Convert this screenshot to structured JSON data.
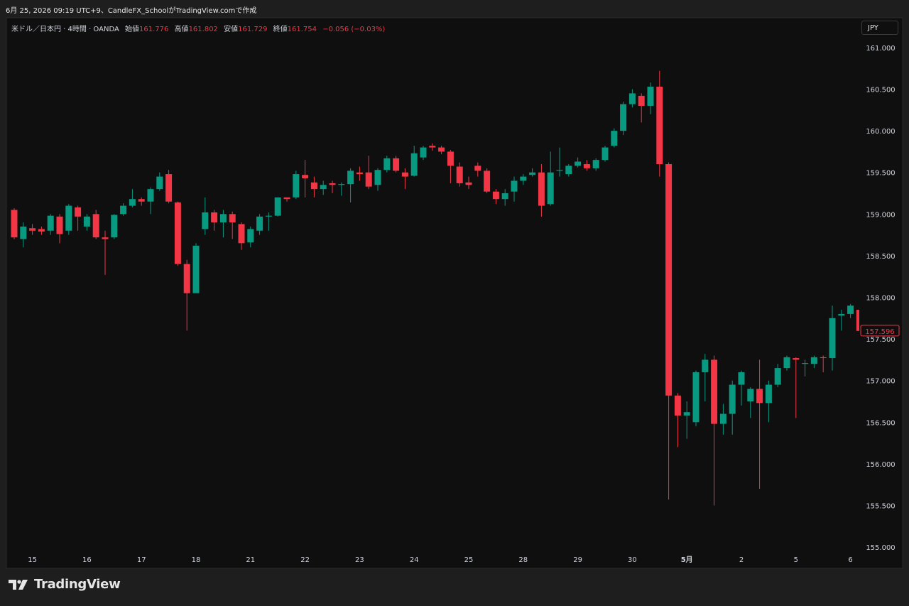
{
  "caption": "6月 25, 2026 09:19 UTC+9、CandleFX_SchoolがTradingView.comで作成",
  "brand": "TradingView",
  "chart_data": {
    "type": "candlestick",
    "title": "米ドル／日本円 · 4時間 · OANDA",
    "legend": {
      "open_label": "始値",
      "open": 161.776,
      "high_label": "高値",
      "high": 161.802,
      "low_label": "安値",
      "low": 161.729,
      "close_label": "終値",
      "close": 161.754,
      "change": "−0.056 (−0.03%)"
    },
    "currency": "JPY",
    "last_price": 157.596,
    "up_color": "#089981",
    "down_color": "#f23645",
    "categories": [
      null,
      null,
      "15",
      null,
      null,
      null,
      null,
      null,
      "16",
      null,
      null,
      null,
      null,
      null,
      "17",
      null,
      null,
      null,
      null,
      null,
      "18",
      null,
      null,
      null,
      null,
      null,
      "21",
      null,
      null,
      null,
      null,
      null,
      "22",
      null,
      null,
      null,
      null,
      null,
      "23",
      null,
      null,
      null,
      null,
      null,
      "24",
      null,
      null,
      null,
      null,
      null,
      "25",
      null,
      null,
      null,
      null,
      null,
      "28",
      null,
      null,
      null,
      null,
      null,
      "29",
      null,
      null,
      null,
      null,
      null,
      "30",
      null,
      null,
      null,
      null,
      null,
      "5月",
      null,
      null,
      null,
      null,
      null,
      "2",
      null,
      null,
      null,
      null,
      null,
      "5",
      null,
      null,
      null,
      null,
      null,
      "6",
      null
    ],
    "open": [
      159.05,
      158.7,
      158.83,
      158.82,
      158.8,
      158.97,
      158.8,
      159.08,
      158.85,
      159.0,
      158.72,
      158.72,
      159.0,
      159.1,
      159.18,
      159.15,
      159.3,
      159.48,
      159.14,
      158.4,
      158.05,
      158.82,
      159.02,
      158.9,
      159.0,
      158.88,
      158.66,
      158.8,
      158.97,
      158.98,
      159.2,
      159.2,
      159.47,
      159.38,
      159.3,
      159.37,
      159.35,
      159.36,
      159.5,
      159.5,
      159.35,
      159.53,
      159.67,
      159.5,
      159.46,
      159.68,
      159.82,
      159.8,
      159.75,
      159.57,
      159.38,
      159.58,
      159.52,
      159.27,
      159.18,
      159.27,
      159.4,
      159.47,
      159.5,
      159.12,
      159.52,
      159.48,
      159.58,
      159.6,
      159.55,
      159.65,
      159.82,
      160.0,
      160.32,
      160.42,
      160.3,
      160.53,
      159.6,
      156.82,
      156.58,
      156.5,
      157.1,
      157.25,
      156.48,
      156.6,
      156.95,
      156.75,
      156.9,
      156.73,
      156.95,
      157.15,
      157.27,
      157.2,
      157.2,
      157.28,
      157.27,
      157.78,
      157.8,
      157.85
    ],
    "high": [
      159.07,
      158.9,
      158.88,
      158.85,
      159.0,
      159.0,
      159.12,
      159.1,
      159.0,
      159.05,
      158.8,
      159.0,
      159.13,
      159.3,
      159.2,
      159.32,
      159.5,
      159.53,
      159.15,
      158.45,
      158.65,
      159.2,
      159.05,
      159.05,
      159.03,
      158.9,
      158.85,
      159.0,
      159.02,
      159.2,
      159.2,
      159.52,
      159.65,
      159.45,
      159.4,
      159.4,
      159.38,
      159.55,
      159.57,
      159.7,
      159.55,
      159.7,
      159.7,
      159.55,
      159.82,
      159.82,
      159.85,
      159.82,
      159.77,
      159.62,
      159.45,
      159.62,
      159.55,
      159.3,
      159.3,
      159.45,
      159.48,
      159.55,
      159.6,
      159.75,
      159.8,
      159.6,
      159.68,
      159.65,
      159.67,
      159.82,
      160.03,
      160.35,
      160.5,
      160.45,
      160.58,
      160.72,
      159.62,
      156.85,
      156.75,
      157.12,
      157.32,
      157.3,
      156.72,
      157.0,
      157.12,
      156.92,
      157.25,
      157.0,
      157.2,
      157.3,
      157.28,
      157.25,
      157.3,
      157.3,
      157.9,
      157.85,
      157.92,
      157.88
    ],
    "low": [
      158.7,
      158.6,
      158.75,
      158.75,
      158.75,
      158.65,
      158.75,
      158.8,
      158.8,
      158.7,
      158.27,
      158.7,
      158.98,
      159.08,
      159.1,
      159.0,
      159.28,
      159.13,
      158.38,
      157.6,
      158.05,
      158.75,
      158.8,
      158.72,
      158.7,
      158.57,
      158.6,
      158.75,
      158.8,
      158.97,
      159.15,
      159.18,
      159.2,
      159.2,
      159.23,
      159.25,
      159.22,
      159.14,
      159.4,
      159.3,
      159.28,
      159.5,
      159.5,
      159.3,
      159.45,
      159.65,
      159.76,
      159.72,
      159.37,
      159.33,
      159.3,
      159.45,
      159.25,
      159.12,
      159.1,
      159.15,
      159.35,
      159.45,
      158.97,
      159.1,
      159.45,
      159.45,
      159.56,
      159.52,
      159.52,
      159.63,
      159.8,
      159.95,
      160.28,
      160.1,
      160.2,
      159.45,
      155.57,
      156.2,
      156.3,
      156.45,
      156.75,
      155.5,
      156.35,
      156.35,
      156.7,
      156.55,
      155.7,
      156.5,
      156.92,
      157.12,
      156.55,
      157.05,
      157.15,
      157.1,
      157.12,
      157.6,
      157.75,
      157.58
    ],
    "close": [
      158.72,
      158.85,
      158.8,
      158.79,
      158.98,
      158.76,
      159.1,
      158.97,
      158.97,
      158.72,
      158.7,
      158.99,
      159.1,
      159.18,
      159.15,
      159.3,
      159.45,
      159.15,
      158.4,
      158.05,
      158.62,
      159.02,
      158.9,
      159.0,
      158.9,
      158.65,
      158.82,
      158.97,
      158.98,
      159.2,
      159.18,
      159.48,
      159.43,
      159.3,
      159.35,
      159.35,
      159.36,
      159.52,
      159.48,
      159.33,
      159.53,
      159.67,
      159.52,
      159.45,
      159.73,
      159.8,
      159.8,
      159.75,
      159.58,
      159.37,
      159.35,
      159.52,
      159.27,
      159.18,
      159.25,
      159.4,
      159.45,
      159.5,
      159.1,
      159.5,
      159.53,
      159.58,
      159.63,
      159.55,
      159.65,
      159.8,
      160.0,
      160.32,
      160.45,
      160.3,
      160.53,
      159.6,
      156.82,
      156.58,
      156.62,
      157.1,
      157.25,
      156.48,
      156.6,
      156.95,
      157.1,
      156.9,
      156.73,
      156.95,
      157.15,
      157.28,
      157.25,
      157.21,
      157.28,
      157.27,
      157.75,
      157.8,
      157.9,
      157.596
    ],
    "ylim": [
      154.932,
      161.358
    ],
    "yticks": [
      {
        "value": 155,
        "label": "155.000"
      },
      {
        "value": 155.5,
        "label": "155.500"
      },
      {
        "value": 156,
        "label": "156.000"
      },
      {
        "value": 156.5,
        "label": "156.500"
      },
      {
        "value": 157,
        "label": "157.000"
      },
      {
        "value": 157.5,
        "label": "157.500"
      },
      {
        "value": 158,
        "label": "158.000"
      },
      {
        "value": 158.5,
        "label": "158.500"
      },
      {
        "value": 159,
        "label": "159.000"
      },
      {
        "value": 159.5,
        "label": "159.500"
      },
      {
        "value": 160,
        "label": "160.000"
      },
      {
        "value": 160.5,
        "label": "160.500"
      },
      {
        "value": 161,
        "label": "161.000"
      }
    ],
    "grid": false
  }
}
